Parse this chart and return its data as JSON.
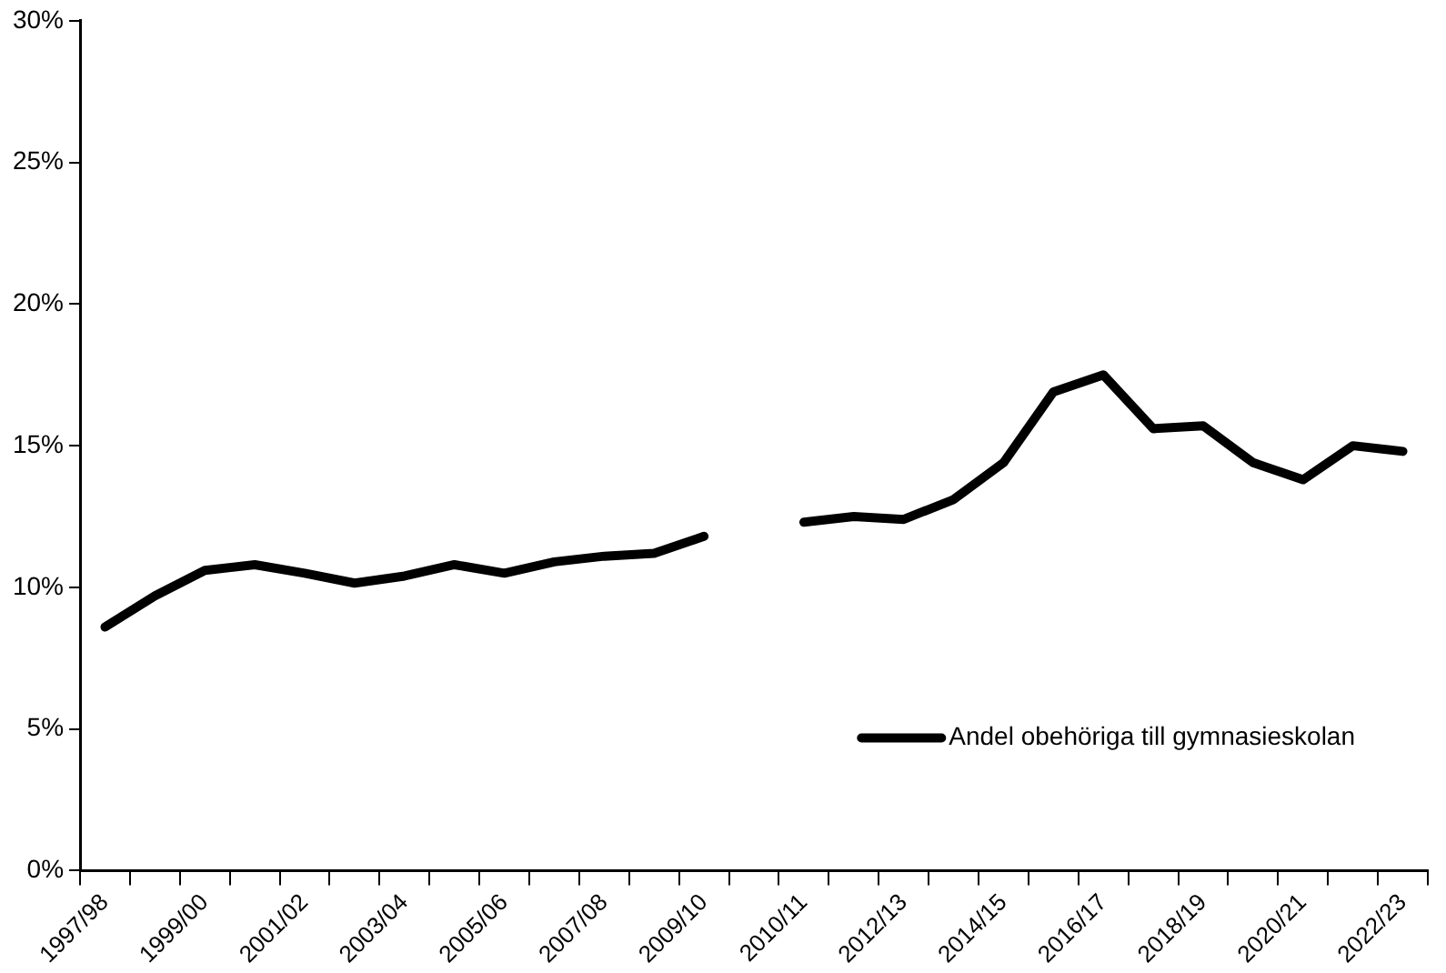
{
  "chart_data": {
    "type": "line",
    "categories": [
      "1997/98",
      null,
      "1999/00",
      null,
      "2001/02",
      null,
      "2003/04",
      null,
      "2005/06",
      null,
      "2007/08",
      null,
      "2009/10",
      null,
      "2010/11",
      null,
      "2012/13",
      null,
      "2014/15",
      null,
      "2016/17",
      null,
      "2018/19",
      null,
      "2020/21",
      null,
      "2022/23"
    ],
    "series": [
      {
        "name": "Andel obehöriga till gymnasieskolan",
        "color": "#000000",
        "values": [
          8.6,
          9.7,
          10.6,
          10.8,
          10.5,
          10.15,
          10.4,
          10.8,
          10.5,
          10.9,
          11.1,
          11.2,
          11.8,
          null,
          12.3,
          12.5,
          12.4,
          13.1,
          14.4,
          16.9,
          17.5,
          15.6,
          15.7,
          14.4,
          13.8,
          15.0,
          14.8
        ]
      }
    ],
    "ylim": [
      0,
      30
    ],
    "yticks": [
      {
        "value": 0,
        "label": "0%"
      },
      {
        "value": 5,
        "label": "5%"
      },
      {
        "value": 10,
        "label": "10%"
      },
      {
        "value": 15,
        "label": "15%"
      },
      {
        "value": 20,
        "label": "20%"
      },
      {
        "value": 25,
        "label": "25%"
      },
      {
        "value": 30,
        "label": "30%"
      }
    ],
    "grid": false,
    "legend": "bottom right",
    "marker": "none",
    "line_style": "solid"
  }
}
